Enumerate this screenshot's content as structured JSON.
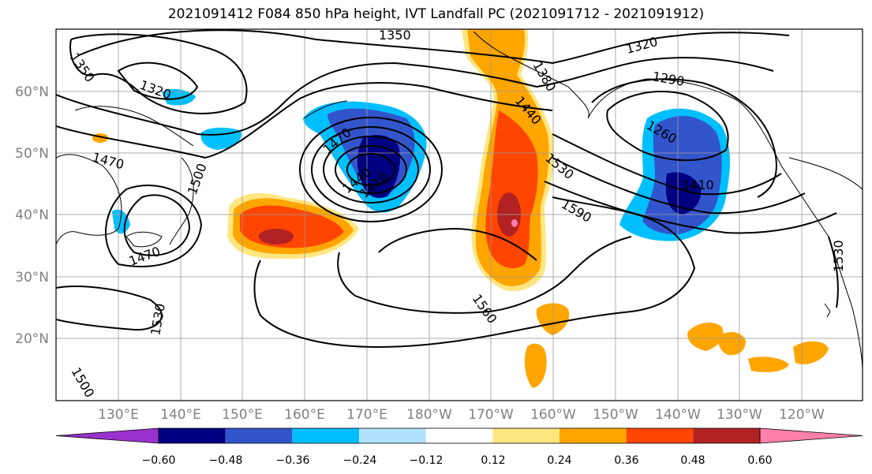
{
  "title": "2021091412 F084 850 hPa height, IVT Landfall PC (2021091712 - 2021091912)",
  "latitude_labels": [
    "60°N",
    "50°N",
    "40°N",
    "30°N",
    "20°N"
  ],
  "longitude_labels": [
    "130°E",
    "140°E",
    "150°E",
    "160°E",
    "170°E",
    "180°W",
    "170°W",
    "160°W",
    "150°W",
    "140°W",
    "130°W",
    "120°W"
  ],
  "contour_labels": [
    "1350",
    "1350",
    "1320",
    "1470",
    "1500",
    "1470",
    "1530",
    "1500",
    "1470",
    "1440",
    "1410",
    "1380",
    "1440",
    "1530",
    "1590",
    "1560",
    "1320",
    "1290",
    "1260",
    "1410",
    "1530"
  ],
  "colorbar": {
    "ticks": [
      "−0.60",
      "−0.48",
      "−0.36",
      "−0.24",
      "−0.12",
      "0.12",
      "0.24",
      "0.36",
      "0.48",
      "0.60"
    ],
    "colors": [
      "#9932cc",
      "#000080",
      "#3355cc",
      "#00bfff",
      "#b0e2ff",
      "#ffffff",
      "#ffe680",
      "#ffa500",
      "#ff4500",
      "#b22222",
      "#ff80a8"
    ]
  }
}
